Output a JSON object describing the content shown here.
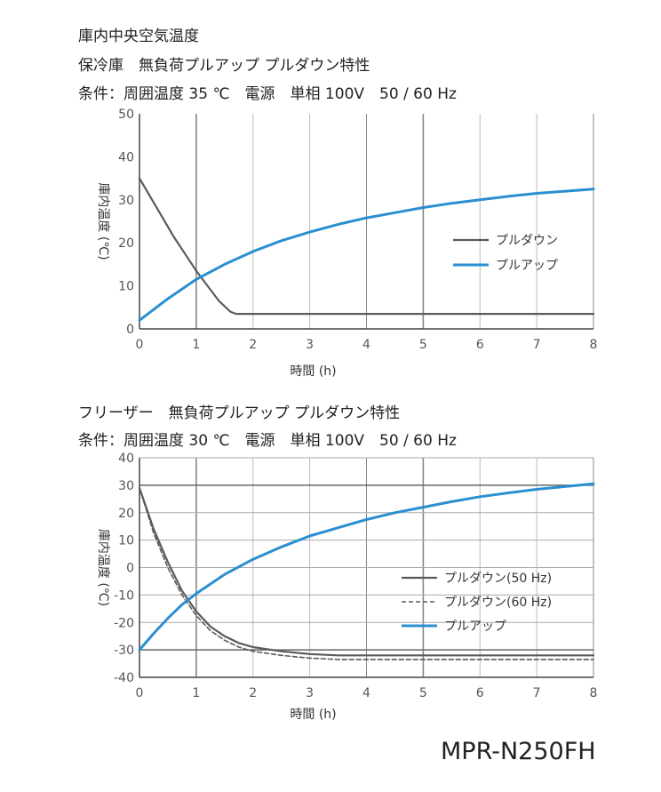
{
  "header": {
    "main_title": "庫内中央空気温度"
  },
  "model": "MPR-N250FH",
  "colors": {
    "pulldown": "#5a5a5a",
    "pullup": "#2a8fd0",
    "grid": "#999999"
  },
  "chart_data": [
    {
      "type": "line",
      "title": "保冷庫　無負荷プルアップ プルダウン特性",
      "subtitle": "条件：周囲温度 35 ℃　電源　単相 100V　50 / 60 Hz",
      "xlabel": "時間 (h)",
      "ylabel": "庫内温度 (℃)",
      "xlim": [
        0,
        8
      ],
      "ylim": [
        0,
        50
      ],
      "xticks": [
        "0",
        "1",
        "2",
        "3",
        "4",
        "5",
        "6",
        "7",
        "8"
      ],
      "yticks": [
        "0",
        "10",
        "20",
        "30",
        "40",
        "50"
      ],
      "legend_position": "center-right",
      "series": [
        {
          "name": "プルダウン",
          "style": "solid-gray",
          "x": [
            0,
            0.2,
            0.4,
            0.6,
            0.8,
            1.0,
            1.2,
            1.4,
            1.6,
            1.7,
            2,
            2.5,
            3,
            3.5,
            4,
            4.5,
            5,
            5.5,
            6,
            6.5,
            7,
            7.5,
            8
          ],
          "y": [
            35,
            30.5,
            26,
            21.5,
            17.5,
            13.5,
            10,
            6.5,
            4,
            3.5,
            3.5,
            3.5,
            3.5,
            3.5,
            3.5,
            3.5,
            3.5,
            3.5,
            3.5,
            3.5,
            3.5,
            3.5,
            3.5
          ]
        },
        {
          "name": "プルアップ",
          "style": "solid-blue",
          "x": [
            0,
            0.5,
            1,
            1.5,
            2,
            2.5,
            3,
            3.5,
            4,
            4.5,
            5,
            5.5,
            6,
            6.5,
            7,
            7.5,
            8
          ],
          "y": [
            2,
            7,
            11.5,
            15,
            18,
            20.5,
            22.5,
            24.3,
            25.8,
            27,
            28.2,
            29.2,
            30,
            30.8,
            31.5,
            32,
            32.5
          ]
        }
      ]
    },
    {
      "type": "line",
      "title": "フリーザー　無負荷プルアップ プルダウン特性",
      "subtitle": "条件：周囲温度 30 ℃　電源　単相 100V　50 / 60 Hz",
      "xlabel": "時間 (h)",
      "ylabel": "庫内温度 (℃)",
      "xlim": [
        0,
        8
      ],
      "ylim": [
        -40,
        40
      ],
      "xticks": [
        "0",
        "1",
        "2",
        "3",
        "4",
        "5",
        "6",
        "7",
        "8"
      ],
      "yticks": [
        "-40",
        "-30",
        "-20",
        "-10",
        "0",
        "10",
        "20",
        "30",
        "40"
      ],
      "legend_position": "center-right",
      "series": [
        {
          "name": "プルダウン(50 Hz)",
          "style": "solid-gray",
          "x": [
            0,
            0.25,
            0.5,
            0.75,
            1.0,
            1.25,
            1.5,
            1.75,
            2,
            2.5,
            3,
            3.5,
            4,
            5,
            6,
            7,
            8
          ],
          "y": [
            29,
            14,
            2,
            -8.5,
            -16,
            -21.5,
            -25,
            -27.5,
            -29,
            -30.5,
            -31.5,
            -32,
            -32,
            -32,
            -32,
            -32,
            -32
          ]
        },
        {
          "name": "プルダウン(60 Hz)",
          "style": "dashed-gray",
          "x": [
            0,
            0.25,
            0.5,
            0.75,
            1.0,
            1.25,
            1.5,
            1.75,
            2,
            2.5,
            3,
            3.5,
            4,
            5,
            6,
            7,
            8
          ],
          "y": [
            29,
            12.5,
            0,
            -10,
            -17.5,
            -23,
            -26.5,
            -29,
            -30.5,
            -32,
            -33,
            -33.5,
            -33.5,
            -33.5,
            -33.5,
            -33.5,
            -33.5
          ]
        },
        {
          "name": "プルアップ",
          "style": "solid-blue",
          "x": [
            0,
            0.25,
            0.5,
            0.75,
            1,
            1.5,
            2,
            2.5,
            3,
            3.5,
            4,
            4.5,
            5,
            5.5,
            6,
            6.5,
            7,
            7.5,
            8
          ],
          "y": [
            -30,
            -24,
            -18.5,
            -13.5,
            -9.5,
            -2.5,
            3,
            7.5,
            11.5,
            14.5,
            17.5,
            20,
            22,
            24,
            25.8,
            27.2,
            28.5,
            29.5,
            30.5
          ]
        }
      ]
    }
  ]
}
